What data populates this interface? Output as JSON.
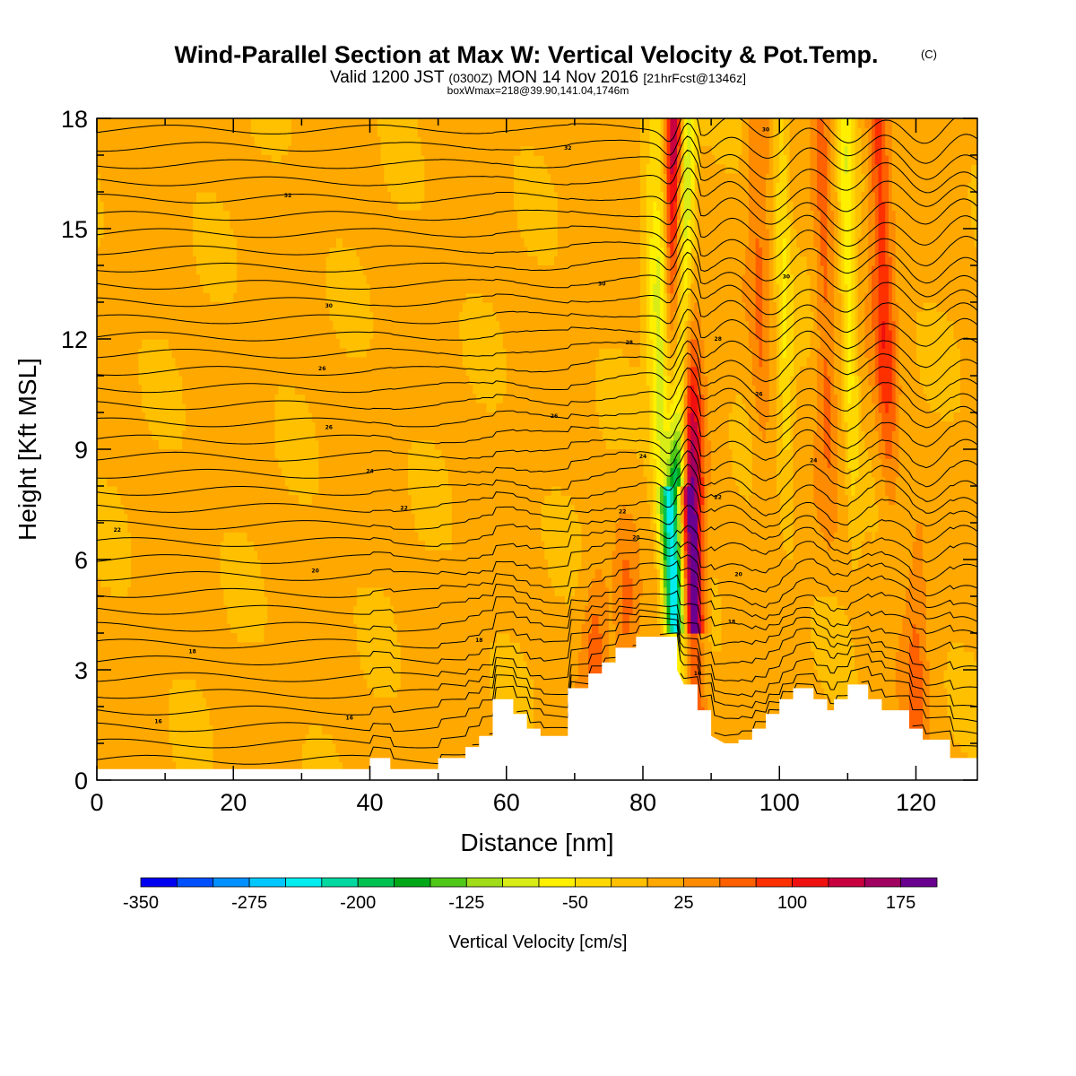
{
  "title": {
    "main": "Wind-Parallel Section at Max W: Vertical Velocity & Pot.Temp.",
    "tag": "(C)",
    "sub_valid": "Valid 1200 JST",
    "sub_utc": "(0300Z)",
    "sub_date": "MON 14 Nov 2016",
    "sub_fcst": "[21hrFcst@1346z]",
    "sub_box": "boxWmax=218@39.90,141.04,1746m"
  },
  "chart_data": {
    "type": "heatmap",
    "xlabel": "Distance [nm]",
    "ylabel": "Height [Kft MSL]",
    "xlim": [
      0,
      129
    ],
    "ylim": [
      0,
      18
    ],
    "x_ticks": [
      "0",
      "20",
      "40",
      "60",
      "80",
      "100",
      "120"
    ],
    "y_ticks": [
      "0",
      "3",
      "6",
      "9",
      "12",
      "15",
      "18"
    ],
    "colorbar": {
      "title": "Vertical Velocity [cm/s]",
      "levels": [
        -350,
        -325,
        -300,
        -275,
        -250,
        -225,
        -200,
        -175,
        -150,
        -125,
        -100,
        -75,
        -50,
        -25,
        0,
        25,
        50,
        75,
        100,
        125,
        150,
        175,
        200
      ],
      "colors": [
        "#0000f0",
        "#0050ff",
        "#0090ff",
        "#00c8ff",
        "#00ecee",
        "#00d8a0",
        "#00c050",
        "#00a818",
        "#50c818",
        "#a0dc18",
        "#d8ec18",
        "#fff000",
        "#ffd800",
        "#ffc000",
        "#ffa800",
        "#ff8c00",
        "#ff6000",
        "#ff3000",
        "#f01010",
        "#c80040",
        "#a00060",
        "#6a0090"
      ],
      "labels": [
        "-350",
        "-275",
        "-200",
        "-125",
        "-50",
        "25",
        "100",
        "175"
      ]
    },
    "terrain": [
      [
        0,
        0.3
      ],
      [
        40,
        0.3
      ],
      [
        40,
        0.6
      ],
      [
        43,
        0.6
      ],
      [
        43,
        0.3
      ],
      [
        50,
        0.3
      ],
      [
        50,
        0.6
      ],
      [
        54,
        0.6
      ],
      [
        54,
        0.9
      ],
      [
        56,
        0.9
      ],
      [
        56,
        1.2
      ],
      [
        58,
        1.2
      ],
      [
        58,
        2.2
      ],
      [
        61,
        2.2
      ],
      [
        61,
        1.8
      ],
      [
        63,
        1.8
      ],
      [
        63,
        1.4
      ],
      [
        65,
        1.4
      ],
      [
        65,
        1.2
      ],
      [
        69,
        1.2
      ],
      [
        69,
        2.5
      ],
      [
        72,
        2.5
      ],
      [
        72,
        2.9
      ],
      [
        74,
        2.9
      ],
      [
        74,
        3.2
      ],
      [
        76,
        3.2
      ],
      [
        76,
        3.6
      ],
      [
        79,
        3.6
      ],
      [
        79,
        3.9
      ],
      [
        85,
        3.9
      ],
      [
        85,
        3.0
      ],
      [
        86,
        2.6
      ],
      [
        88,
        2.6
      ],
      [
        88,
        1.9
      ],
      [
        90,
        1.9
      ],
      [
        90,
        1.2
      ],
      [
        92,
        1.0
      ],
      [
        94,
        1.0
      ],
      [
        94,
        1.1
      ],
      [
        96,
        1.1
      ],
      [
        96,
        1.4
      ],
      [
        98,
        1.4
      ],
      [
        98,
        1.8
      ],
      [
        100,
        1.8
      ],
      [
        100,
        2.2
      ],
      [
        102,
        2.2
      ],
      [
        102,
        2.5
      ],
      [
        105,
        2.5
      ],
      [
        105,
        2.2
      ],
      [
        107,
        2.2
      ],
      [
        107,
        1.9
      ],
      [
        108,
        1.9
      ],
      [
        108,
        2.2
      ],
      [
        110,
        2.2
      ],
      [
        110,
        2.6
      ],
      [
        113,
        2.6
      ],
      [
        113,
        2.2
      ],
      [
        115,
        2.2
      ],
      [
        115,
        1.9
      ],
      [
        119,
        1.9
      ],
      [
        119,
        1.4
      ],
      [
        121,
        1.4
      ],
      [
        121,
        1.1
      ],
      [
        125,
        1.1
      ],
      [
        125,
        0.6
      ],
      [
        129,
        0.6
      ]
    ],
    "contour_labels": [
      {
        "text": "32",
        "x": 28,
        "y": 15.9
      },
      {
        "text": "32",
        "x": 69,
        "y": 17.2
      },
      {
        "text": "30",
        "x": 98,
        "y": 17.7
      },
      {
        "text": "30",
        "x": 34,
        "y": 12.9
      },
      {
        "text": "30",
        "x": 74,
        "y": 13.5
      },
      {
        "text": "30",
        "x": 101,
        "y": 13.7
      },
      {
        "text": "28",
        "x": 78,
        "y": 11.9
      },
      {
        "text": "28",
        "x": 91,
        "y": 12.0
      },
      {
        "text": "26",
        "x": 33,
        "y": 11.2
      },
      {
        "text": "26",
        "x": 34,
        "y": 9.6
      },
      {
        "text": "26",
        "x": 67,
        "y": 9.9
      },
      {
        "text": "26",
        "x": 97,
        "y": 10.5
      },
      {
        "text": "24",
        "x": 40,
        "y": 8.4
      },
      {
        "text": "24",
        "x": 80,
        "y": 8.8
      },
      {
        "text": "24",
        "x": 105,
        "y": 8.7
      },
      {
        "text": "22",
        "x": 3,
        "y": 6.8
      },
      {
        "text": "22",
        "x": 45,
        "y": 7.4
      },
      {
        "text": "22",
        "x": 77,
        "y": 7.3
      },
      {
        "text": "22",
        "x": 91,
        "y": 7.7
      },
      {
        "text": "20",
        "x": 32,
        "y": 5.7
      },
      {
        "text": "20",
        "x": 79,
        "y": 6.6
      },
      {
        "text": "20",
        "x": 94,
        "y": 5.6
      },
      {
        "text": "18",
        "x": 14,
        "y": 3.5
      },
      {
        "text": "18",
        "x": 56,
        "y": 3.8
      },
      {
        "text": "18",
        "x": 93,
        "y": 4.3
      },
      {
        "text": "16",
        "x": 9,
        "y": 1.6
      },
      {
        "text": "16",
        "x": 37,
        "y": 1.7
      },
      {
        "text": "16",
        "x": 88,
        "y": 2.9
      }
    ]
  }
}
